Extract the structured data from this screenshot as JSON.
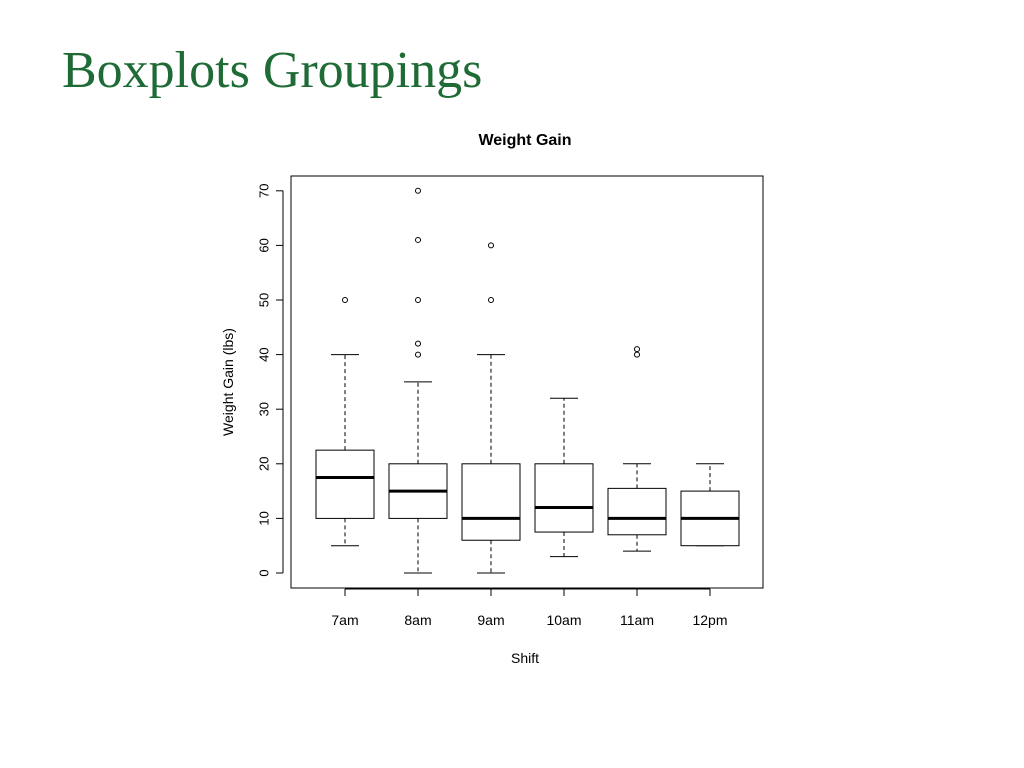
{
  "slide": {
    "title": "Boxplots Groupings"
  },
  "chart_data": {
    "type": "boxplot",
    "title": "Weight Gain",
    "xlabel": "Shift",
    "ylabel": "Weight Gain (lbs)",
    "ylim": [
      -3,
      73
    ],
    "yticks": [
      0,
      10,
      20,
      30,
      40,
      50,
      60,
      70
    ],
    "grid": false,
    "categories": [
      "7am",
      "8am",
      "9am",
      "10am",
      "11am",
      "12pm"
    ],
    "boxes": [
      {
        "whisker_low": 5,
        "q1": 10,
        "median": 17.5,
        "q3": 22.5,
        "whisker_high": 40,
        "outliers": [
          50
        ]
      },
      {
        "whisker_low": 0,
        "q1": 10,
        "median": 15,
        "q3": 20,
        "whisker_high": 35,
        "outliers": [
          40,
          42,
          50,
          61,
          70
        ]
      },
      {
        "whisker_low": 0,
        "q1": 6,
        "median": 10,
        "q3": 20,
        "whisker_high": 40,
        "outliers": [
          50,
          60
        ]
      },
      {
        "whisker_low": 3,
        "q1": 7.5,
        "median": 12,
        "q3": 20,
        "whisker_high": 32,
        "outliers": []
      },
      {
        "whisker_low": 4,
        "q1": 7,
        "median": 10,
        "q3": 15.5,
        "whisker_high": 20,
        "outliers": [
          40,
          41
        ]
      },
      {
        "whisker_low": 5,
        "q1": 5,
        "median": 10,
        "q3": 15,
        "whisker_high": 20,
        "outliers": []
      }
    ]
  }
}
